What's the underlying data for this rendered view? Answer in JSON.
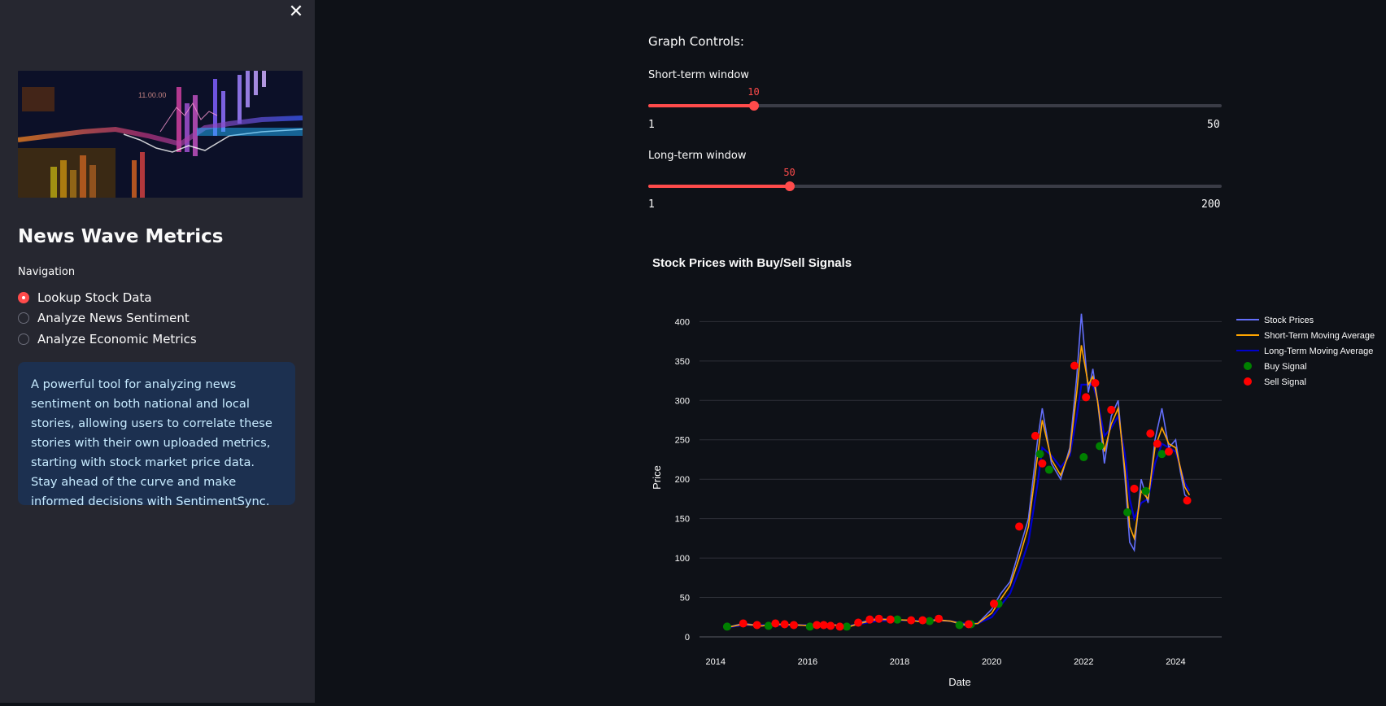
{
  "sidebar": {
    "close_icon": "close-icon",
    "title": "News Wave Metrics",
    "nav_label": "Navigation",
    "nav_options": [
      {
        "label": "Lookup Stock Data",
        "selected": true
      },
      {
        "label": "Analyze News Sentiment",
        "selected": false
      },
      {
        "label": "Analyze Economic Metrics",
        "selected": false
      }
    ],
    "info_text": "A powerful tool for analyzing news sentiment on both national and local stories, allowing users to correlate these stories with their own uploaded metrics, starting with stock market price data. Stay ahead of the curve and make informed decisions with SentimentSync.",
    "hero_chart_text": "11.00.00"
  },
  "controls": {
    "title": "Graph Controls:",
    "short": {
      "label": "Short-term window",
      "value": "10",
      "min": "1",
      "max": "50",
      "fraction": 0.1837
    },
    "long": {
      "label": "Long-term window",
      "value": "50",
      "min": "1",
      "max": "200",
      "fraction": 0.2462
    }
  },
  "colors": {
    "accent": "#ff4b4b",
    "stock": "#636efa",
    "short_ma": "#ffa500",
    "long_ma": "#0000cd",
    "buy": "#008000",
    "sell": "#ff0000"
  },
  "chart_data": {
    "type": "line",
    "title": "Stock Prices with Buy/Sell Signals",
    "xlabel": "Date",
    "ylabel": "Price",
    "xlim": [
      2013.65,
      2025.0
    ],
    "ylim": [
      0,
      420
    ],
    "x_ticks": [
      "2014",
      "2016",
      "2018",
      "2020",
      "2022",
      "2024"
    ],
    "y_ticks": [
      "0",
      "50",
      "100",
      "150",
      "200",
      "250",
      "300",
      "350",
      "400"
    ],
    "grid": true,
    "legend_position": "top-right",
    "legend": [
      "Stock Prices",
      "Short-Term Moving Average",
      "Long-Term Moving Average",
      "Buy Signal",
      "Sell Signal"
    ],
    "stock_prices": [
      [
        2014.25,
        12
      ],
      [
        2014.6,
        17
      ],
      [
        2015.0,
        14
      ],
      [
        2015.4,
        16
      ],
      [
        2015.8,
        15
      ],
      [
        2016.2,
        14
      ],
      [
        2016.6,
        15
      ],
      [
        2016.9,
        13
      ],
      [
        2017.2,
        19
      ],
      [
        2017.5,
        23
      ],
      [
        2017.8,
        22
      ],
      [
        2018.2,
        21
      ],
      [
        2018.5,
        19
      ],
      [
        2018.8,
        22
      ],
      [
        2019.1,
        20
      ],
      [
        2019.4,
        15
      ],
      [
        2019.7,
        17
      ],
      [
        2020.0,
        35
      ],
      [
        2020.2,
        55
      ],
      [
        2020.4,
        70
      ],
      [
        2020.6,
        110
      ],
      [
        2020.8,
        150
      ],
      [
        2021.0,
        250
      ],
      [
        2021.1,
        290
      ],
      [
        2021.3,
        220
      ],
      [
        2021.5,
        200
      ],
      [
        2021.7,
        240
      ],
      [
        2021.85,
        330
      ],
      [
        2021.95,
        410
      ],
      [
        2022.1,
        310
      ],
      [
        2022.2,
        340
      ],
      [
        2022.3,
        300
      ],
      [
        2022.45,
        220
      ],
      [
        2022.6,
        280
      ],
      [
        2022.75,
        300
      ],
      [
        2022.9,
        200
      ],
      [
        2023.0,
        120
      ],
      [
        2023.1,
        110
      ],
      [
        2023.25,
        200
      ],
      [
        2023.4,
        170
      ],
      [
        2023.55,
        250
      ],
      [
        2023.7,
        290
      ],
      [
        2023.85,
        240
      ],
      [
        2024.0,
        250
      ],
      [
        2024.1,
        210
      ],
      [
        2024.2,
        180
      ],
      [
        2024.3,
        175
      ]
    ],
    "short_ma": [
      [
        2014.25,
        12
      ],
      [
        2014.6,
        16
      ],
      [
        2015.0,
        14
      ],
      [
        2015.4,
        16
      ],
      [
        2015.8,
        15
      ],
      [
        2016.2,
        14
      ],
      [
        2016.6,
        15
      ],
      [
        2016.9,
        13
      ],
      [
        2017.2,
        18
      ],
      [
        2017.5,
        22
      ],
      [
        2017.8,
        22
      ],
      [
        2018.2,
        21
      ],
      [
        2018.5,
        19
      ],
      [
        2018.8,
        21
      ],
      [
        2019.1,
        20
      ],
      [
        2019.4,
        16
      ],
      [
        2019.7,
        17
      ],
      [
        2020.0,
        30
      ],
      [
        2020.2,
        48
      ],
      [
        2020.4,
        65
      ],
      [
        2020.6,
        100
      ],
      [
        2020.8,
        140
      ],
      [
        2021.0,
        230
      ],
      [
        2021.1,
        275
      ],
      [
        2021.3,
        225
      ],
      [
        2021.5,
        205
      ],
      [
        2021.7,
        235
      ],
      [
        2021.85,
        310
      ],
      [
        2021.95,
        370
      ],
      [
        2022.1,
        320
      ],
      [
        2022.2,
        330
      ],
      [
        2022.3,
        300
      ],
      [
        2022.45,
        235
      ],
      [
        2022.6,
        270
      ],
      [
        2022.75,
        290
      ],
      [
        2022.9,
        210
      ],
      [
        2023.0,
        140
      ],
      [
        2023.1,
        125
      ],
      [
        2023.25,
        185
      ],
      [
        2023.4,
        175
      ],
      [
        2023.55,
        240
      ],
      [
        2023.7,
        265
      ],
      [
        2023.85,
        245
      ],
      [
        2024.0,
        240
      ],
      [
        2024.1,
        215
      ],
      [
        2024.2,
        190
      ],
      [
        2024.3,
        180
      ]
    ],
    "long_ma": [
      [
        2014.25,
        12
      ],
      [
        2014.6,
        15
      ],
      [
        2015.0,
        15
      ],
      [
        2015.4,
        15
      ],
      [
        2015.8,
        15
      ],
      [
        2016.2,
        15
      ],
      [
        2016.6,
        15
      ],
      [
        2016.9,
        14
      ],
      [
        2017.2,
        17
      ],
      [
        2017.5,
        20
      ],
      [
        2017.8,
        21
      ],
      [
        2018.2,
        21
      ],
      [
        2018.5,
        20
      ],
      [
        2018.8,
        21
      ],
      [
        2019.1,
        20
      ],
      [
        2019.4,
        17
      ],
      [
        2019.7,
        17
      ],
      [
        2020.0,
        25
      ],
      [
        2020.2,
        40
      ],
      [
        2020.4,
        55
      ],
      [
        2020.6,
        85
      ],
      [
        2020.8,
        120
      ],
      [
        2021.0,
        195
      ],
      [
        2021.1,
        240
      ],
      [
        2021.3,
        230
      ],
      [
        2021.5,
        215
      ],
      [
        2021.7,
        230
      ],
      [
        2021.85,
        280
      ],
      [
        2021.95,
        320
      ],
      [
        2022.1,
        320
      ],
      [
        2022.2,
        320
      ],
      [
        2022.3,
        300
      ],
      [
        2022.45,
        255
      ],
      [
        2022.6,
        265
      ],
      [
        2022.75,
        280
      ],
      [
        2022.9,
        230
      ],
      [
        2023.0,
        175
      ],
      [
        2023.1,
        150
      ],
      [
        2023.25,
        170
      ],
      [
        2023.4,
        175
      ],
      [
        2023.55,
        220
      ],
      [
        2023.7,
        245
      ],
      [
        2023.85,
        240
      ],
      [
        2024.0,
        235
      ],
      [
        2024.1,
        215
      ],
      [
        2024.2,
        195
      ],
      [
        2024.3,
        185
      ]
    ],
    "buy_signals": [
      [
        2014.25,
        13
      ],
      [
        2015.15,
        14
      ],
      [
        2016.05,
        13
      ],
      [
        2016.85,
        13
      ],
      [
        2017.95,
        22
      ],
      [
        2018.65,
        20
      ],
      [
        2019.3,
        15
      ],
      [
        2019.55,
        16
      ],
      [
        2020.15,
        42
      ],
      [
        2021.05,
        232
      ],
      [
        2021.25,
        212
      ],
      [
        2022.0,
        228
      ],
      [
        2022.35,
        242
      ],
      [
        2022.95,
        158
      ],
      [
        2023.35,
        185
      ],
      [
        2023.7,
        232
      ]
    ],
    "sell_signals": [
      [
        2014.6,
        17
      ],
      [
        2014.9,
        15
      ],
      [
        2015.3,
        17
      ],
      [
        2015.5,
        16
      ],
      [
        2015.7,
        15
      ],
      [
        2016.2,
        15
      ],
      [
        2016.35,
        15
      ],
      [
        2016.5,
        14
      ],
      [
        2016.7,
        13
      ],
      [
        2017.1,
        18
      ],
      [
        2017.35,
        22
      ],
      [
        2017.55,
        23
      ],
      [
        2017.8,
        22
      ],
      [
        2018.25,
        21
      ],
      [
        2018.5,
        21
      ],
      [
        2018.85,
        23
      ],
      [
        2019.5,
        16
      ],
      [
        2020.05,
        42
      ],
      [
        2020.6,
        140
      ],
      [
        2020.95,
        255
      ],
      [
        2021.1,
        220
      ],
      [
        2021.8,
        344
      ],
      [
        2022.05,
        304
      ],
      [
        2022.25,
        322
      ],
      [
        2022.6,
        288
      ],
      [
        2023.1,
        188
      ],
      [
        2023.45,
        258
      ],
      [
        2023.6,
        245
      ],
      [
        2023.85,
        235
      ],
      [
        2024.25,
        173
      ]
    ]
  }
}
